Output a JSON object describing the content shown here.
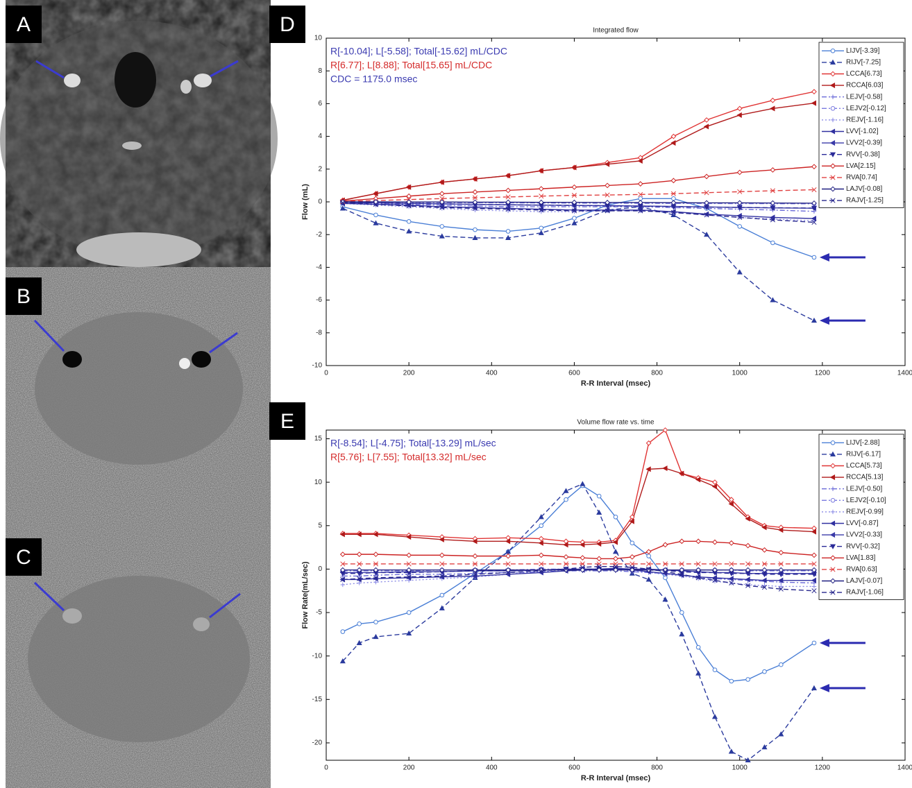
{
  "panel_labels": [
    "A",
    "B",
    "C"
  ],
  "chart_data": [
    {
      "type": "line",
      "panel_label": "D",
      "title": "Integrated flow",
      "x_label": "R-R Interval (msec)",
      "y_label": "Flow (mL)",
      "xlim": [
        0,
        1400
      ],
      "xticks": [
        0,
        200,
        400,
        600,
        800,
        1000,
        1200,
        1400
      ],
      "ylim": [
        -10,
        10
      ],
      "yticks": [
        -10,
        -8,
        -6,
        -4,
        -2,
        0,
        2,
        4,
        6,
        8,
        10
      ],
      "annotations": [
        {
          "text": "R[-10.04]; L[-5.58]; Total[-15.62]   mL/CDC",
          "color": "#3a3ab0"
        },
        {
          "text": "R[6.77]; L[8.88]; Total[15.65]   mL/CDC",
          "color": "#d42a2a"
        },
        {
          "text": "CDC = 1175.0 msec",
          "color": "#3a3ab0"
        }
      ],
      "legend": "upper right",
      "x": [
        40,
        120,
        200,
        280,
        360,
        440,
        520,
        600,
        680,
        760,
        840,
        920,
        1000,
        1080,
        1180
      ],
      "series": [
        {
          "name": "LIJV[-3.39]",
          "color": "#4a7fd6",
          "dash": "solid",
          "marker": "circle",
          "values": [
            -0.3,
            -0.8,
            -1.2,
            -1.5,
            -1.7,
            -1.8,
            -1.6,
            -1.0,
            -0.2,
            0.2,
            0.2,
            -0.4,
            -1.5,
            -2.5,
            -3.39
          ]
        },
        {
          "name": "RIJV[-7.25]",
          "color": "#2b3b9e",
          "dash": "dashed",
          "marker": "triangle",
          "values": [
            -0.4,
            -1.3,
            -1.8,
            -2.1,
            -2.2,
            -2.2,
            -1.9,
            -1.3,
            -0.5,
            -0.3,
            -0.8,
            -2.0,
            -4.3,
            -6.0,
            -7.25
          ]
        },
        {
          "name": "LCCA[6.73]",
          "color": "#e03434",
          "dash": "solid",
          "marker": "diamond",
          "values": [
            0.1,
            0.5,
            0.9,
            1.2,
            1.4,
            1.6,
            1.9,
            2.1,
            2.4,
            2.7,
            4.0,
            5.0,
            5.7,
            6.2,
            6.73
          ]
        },
        {
          "name": "RCCA[6.03]",
          "color": "#b01a1a",
          "dash": "solid",
          "marker": "tri-left",
          "values": [
            0.1,
            0.5,
            0.9,
            1.2,
            1.4,
            1.6,
            1.9,
            2.1,
            2.3,
            2.5,
            3.6,
            4.6,
            5.3,
            5.7,
            6.03
          ]
        },
        {
          "name": "LEJV[-0.58]",
          "color": "#6a6ad8",
          "dash": "dashdot",
          "marker": "plus",
          "values": [
            -0.05,
            -0.1,
            -0.15,
            -0.2,
            -0.25,
            -0.3,
            -0.3,
            -0.3,
            -0.3,
            -0.3,
            -0.35,
            -0.4,
            -0.45,
            -0.5,
            -0.58
          ]
        },
        {
          "name": "LEJV2[-0.12]",
          "color": "#7a7ae0",
          "dash": "dashdot",
          "marker": "circle",
          "values": [
            0,
            -0.02,
            -0.03,
            -0.05,
            -0.05,
            -0.06,
            -0.07,
            -0.08,
            -0.08,
            -0.09,
            -0.1,
            -0.1,
            -0.11,
            -0.11,
            -0.12
          ]
        },
        {
          "name": "REJV[-1.16]",
          "color": "#8a8ae6",
          "dash": "dotted",
          "marker": "plus",
          "values": [
            -0.1,
            -0.2,
            -0.3,
            -0.4,
            -0.5,
            -0.55,
            -0.6,
            -0.6,
            -0.55,
            -0.55,
            -0.65,
            -0.8,
            -0.95,
            -1.05,
            -1.16
          ]
        },
        {
          "name": "LVV[-1.02]",
          "color": "#3030a0",
          "dash": "solid",
          "marker": "tri-left",
          "values": [
            -0.1,
            -0.15,
            -0.2,
            -0.3,
            -0.35,
            -0.4,
            -0.45,
            -0.5,
            -0.5,
            -0.5,
            -0.6,
            -0.75,
            -0.85,
            -0.95,
            -1.02
          ]
        },
        {
          "name": "LVV2[-0.39]",
          "color": "#3a3aa8",
          "dash": "solid",
          "marker": "tri-left",
          "values": [
            -0.03,
            -0.06,
            -0.1,
            -0.12,
            -0.15,
            -0.18,
            -0.2,
            -0.22,
            -0.23,
            -0.25,
            -0.28,
            -0.31,
            -0.34,
            -0.37,
            -0.39
          ]
        },
        {
          "name": "RVV[-0.38]",
          "color": "#2a2a98",
          "dash": "dashed",
          "marker": "tri-down",
          "values": [
            -0.03,
            -0.06,
            -0.09,
            -0.12,
            -0.15,
            -0.18,
            -0.2,
            -0.22,
            -0.24,
            -0.26,
            -0.29,
            -0.32,
            -0.34,
            -0.36,
            -0.38
          ]
        },
        {
          "name": "LVA[2.15]",
          "color": "#cc2222",
          "dash": "solid",
          "marker": "diamond",
          "values": [
            0.05,
            0.2,
            0.35,
            0.5,
            0.6,
            0.7,
            0.8,
            0.9,
            1.0,
            1.1,
            1.3,
            1.55,
            1.8,
            1.95,
            2.15
          ]
        },
        {
          "name": "RVA[0.74]",
          "color": "#e04040",
          "dash": "dashed",
          "marker": "x",
          "values": [
            0.02,
            0.08,
            0.14,
            0.2,
            0.25,
            0.3,
            0.35,
            0.4,
            0.42,
            0.45,
            0.5,
            0.56,
            0.62,
            0.68,
            0.74
          ]
        },
        {
          "name": "LAJV[-0.08]",
          "color": "#1e1e80",
          "dash": "solid",
          "marker": "diamond",
          "values": [
            0,
            0,
            -0.01,
            -0.01,
            -0.02,
            -0.02,
            -0.03,
            -0.03,
            -0.04,
            -0.04,
            -0.05,
            -0.06,
            -0.06,
            -0.07,
            -0.08
          ]
        },
        {
          "name": "RAJV[-1.25]",
          "color": "#26268c",
          "dash": "dashed",
          "marker": "x",
          "values": [
            -0.05,
            -0.15,
            -0.25,
            -0.35,
            -0.4,
            -0.45,
            -0.5,
            -0.55,
            -0.55,
            -0.55,
            -0.65,
            -0.8,
            -0.95,
            -1.1,
            -1.25
          ]
        }
      ]
    },
    {
      "type": "line",
      "panel_label": "E",
      "title": "Volume flow rate vs. time",
      "x_label": "R-R Interval (msec)",
      "y_label": "Flow Rate(mL/sec)",
      "xlim": [
        0,
        1400
      ],
      "xticks": [
        0,
        200,
        400,
        600,
        800,
        1000,
        1200,
        1400
      ],
      "ylim": [
        -22,
        16
      ],
      "yticks": [
        -20,
        -15,
        -10,
        -5,
        0,
        5,
        10,
        15
      ],
      "annotations": [
        {
          "text": "R[-8.54]; L[-4.75]; Total[-13.29]   mL/sec",
          "color": "#3a3ab0"
        },
        {
          "text": "R[5.76]; L[7.55]; Total[13.32]   mL/sec",
          "color": "#d42a2a"
        }
      ],
      "legend": "upper right",
      "x": [
        40,
        80,
        120,
        200,
        280,
        360,
        440,
        520,
        580,
        620,
        660,
        700,
        740,
        780,
        820,
        860,
        900,
        940,
        980,
        1020,
        1060,
        1100,
        1180
      ],
      "series": [
        {
          "name": "LIJV[-2.88]",
          "color": "#4a7fd6",
          "dash": "solid",
          "marker": "circle",
          "values": [
            -7.2,
            -6.3,
            -6.1,
            -5.0,
            -3.0,
            -0.5,
            2.0,
            5.0,
            8.0,
            9.6,
            8.4,
            6.0,
            3.0,
            1.5,
            -1.0,
            -5.0,
            -9.0,
            -11.6,
            -12.9,
            -12.7,
            -11.8,
            -11.0,
            -8.5
          ]
        },
        {
          "name": "RIJV[-6.17]",
          "color": "#2b3b9e",
          "dash": "dashed",
          "marker": "triangle",
          "values": [
            -10.6,
            -8.5,
            -7.8,
            -7.4,
            -4.5,
            -1.0,
            2.0,
            6.0,
            9.0,
            9.8,
            6.5,
            2.0,
            -0.5,
            -1.2,
            -3.5,
            -7.5,
            -12.0,
            -17.0,
            -21.0,
            -22.0,
            -20.5,
            -19.0,
            -13.7
          ]
        },
        {
          "name": "LCCA[5.73]",
          "color": "#e03434",
          "dash": "solid",
          "marker": "diamond",
          "values": [
            4.1,
            4.1,
            4.1,
            3.9,
            3.7,
            3.5,
            3.6,
            3.5,
            3.2,
            3.1,
            3.1,
            3.3,
            6.0,
            14.5,
            16.0,
            11.0,
            10.5,
            10.0,
            8.0,
            6.0,
            5.0,
            4.8,
            4.7
          ]
        },
        {
          "name": "RCCA[5.13]",
          "color": "#b01a1a",
          "dash": "solid",
          "marker": "tri-left",
          "values": [
            4.0,
            4.0,
            4.0,
            3.7,
            3.4,
            3.2,
            3.2,
            3.0,
            2.8,
            2.8,
            2.9,
            3.1,
            5.5,
            11.5,
            11.6,
            11.0,
            10.3,
            9.5,
            7.5,
            5.8,
            4.8,
            4.5,
            4.3
          ]
        },
        {
          "name": "LEJV[-0.50]",
          "color": "#6a6ad8",
          "dash": "dashdot",
          "marker": "plus",
          "values": [
            -0.8,
            -0.8,
            -0.7,
            -0.6,
            -0.6,
            -0.5,
            -0.4,
            -0.3,
            -0.2,
            -0.2,
            -0.2,
            -0.2,
            -0.3,
            -0.4,
            -0.5,
            -0.7,
            -0.9,
            -1.1,
            -1.2,
            -1.3,
            -1.4,
            -1.5,
            -1.6
          ]
        },
        {
          "name": "LEJV2[-0.10]",
          "color": "#7a7ae0",
          "dash": "dashdot",
          "marker": "circle",
          "values": [
            -0.2,
            -0.2,
            -0.2,
            -0.2,
            -0.1,
            -0.1,
            -0.1,
            0,
            0,
            0,
            0,
            0,
            -0.1,
            -0.1,
            -0.1,
            -0.1,
            -0.1,
            -0.1,
            -0.1,
            -0.2,
            -0.2,
            -0.2,
            -0.2
          ]
        },
        {
          "name": "REJV[-0.99]",
          "color": "#8a8ae6",
          "dash": "dotted",
          "marker": "plus",
          "values": [
            -1.8,
            -1.6,
            -1.5,
            -1.3,
            -1.1,
            -0.9,
            -0.6,
            -0.3,
            -0.1,
            0,
            0,
            0,
            -0.2,
            -0.4,
            -0.6,
            -0.8,
            -1.1,
            -1.4,
            -1.6,
            -1.8,
            -1.9,
            -2.0,
            -2.0
          ]
        },
        {
          "name": "LVV[-0.87]",
          "color": "#3030a0",
          "dash": "solid",
          "marker": "tri-left",
          "values": [
            -1.2,
            -1.2,
            -1.1,
            -1.0,
            -0.9,
            -0.8,
            -0.6,
            -0.4,
            -0.2,
            -0.1,
            0,
            0,
            -0.1,
            -0.3,
            -0.5,
            -0.7,
            -0.9,
            -1.0,
            -1.1,
            -1.2,
            -1.3,
            -1.3,
            -1.3
          ]
        },
        {
          "name": "LVV2[-0.33]",
          "color": "#3a3aa8",
          "dash": "solid",
          "marker": "tri-left",
          "values": [
            -0.4,
            -0.4,
            -0.4,
            -0.3,
            -0.3,
            -0.2,
            -0.2,
            -0.1,
            0,
            0,
            0,
            0.1,
            0,
            0,
            -0.1,
            -0.2,
            -0.3,
            -0.4,
            -0.4,
            -0.5,
            -0.5,
            -0.5,
            -0.5
          ]
        },
        {
          "name": "RVV[-0.32]",
          "color": "#2a2a98",
          "dash": "dashed",
          "marker": "tri-down",
          "values": [
            -0.5,
            -0.5,
            -0.4,
            -0.4,
            -0.3,
            -0.2,
            -0.2,
            -0.1,
            0,
            0,
            0,
            0,
            0,
            -0.1,
            -0.2,
            -0.3,
            -0.4,
            -0.4,
            -0.5,
            -0.5,
            -0.6,
            -0.6,
            -0.6
          ]
        },
        {
          "name": "LVA[1.83]",
          "color": "#cc2222",
          "dash": "solid",
          "marker": "diamond",
          "values": [
            1.7,
            1.7,
            1.7,
            1.6,
            1.6,
            1.5,
            1.5,
            1.6,
            1.4,
            1.3,
            1.2,
            1.2,
            1.4,
            2.0,
            2.8,
            3.2,
            3.2,
            3.1,
            3.0,
            2.7,
            2.2,
            1.9,
            1.6
          ]
        },
        {
          "name": "RVA[0.63]",
          "color": "#e04040",
          "dash": "dashed",
          "marker": "x",
          "values": [
            0.6,
            0.6,
            0.6,
            0.6,
            0.6,
            0.6,
            0.6,
            0.6,
            0.6,
            0.6,
            0.6,
            0.6,
            0.6,
            0.6,
            0.6,
            0.6,
            0.6,
            0.6,
            0.6,
            0.6,
            0.6,
            0.6,
            0.6
          ]
        },
        {
          "name": "LAJV[-0.07]",
          "color": "#1e1e80",
          "dash": "solid",
          "marker": "diamond",
          "values": [
            -0.1,
            -0.1,
            -0.1,
            -0.1,
            -0.1,
            -0.1,
            -0.1,
            -0.1,
            -0.1,
            -0.1,
            -0.1,
            -0.1,
            -0.1,
            -0.1,
            -0.1,
            -0.1,
            -0.1,
            -0.1,
            -0.1,
            -0.1,
            -0.1,
            -0.1,
            -0.1
          ]
        },
        {
          "name": "RAJV[-1.06]",
          "color": "#26268c",
          "dash": "dashed",
          "marker": "x",
          "values": [
            -1.2,
            -1.1,
            -1.0,
            -0.9,
            -0.8,
            -0.6,
            -0.4,
            -0.2,
            0,
            0.2,
            0.3,
            0.3,
            0.2,
            0,
            -0.3,
            -0.6,
            -1.0,
            -1.3,
            -1.6,
            -1.9,
            -2.1,
            -2.3,
            -2.5
          ]
        }
      ]
    }
  ]
}
